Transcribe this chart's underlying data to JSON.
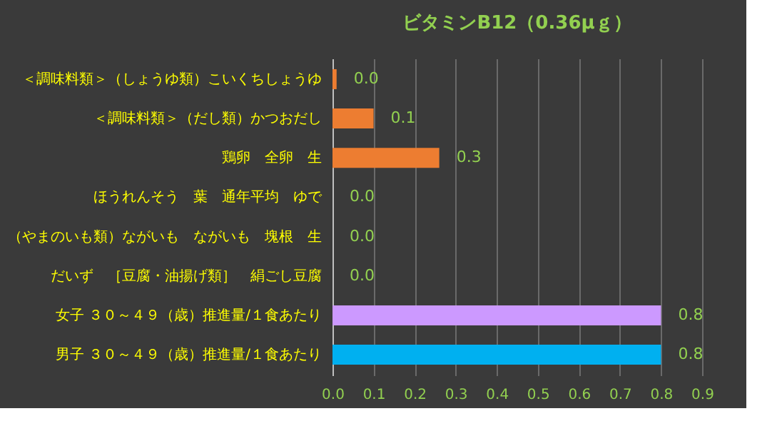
{
  "chart_data": {
    "type": "bar",
    "orientation": "horizontal",
    "title": "ビタミンB12（0.36μｇ）",
    "categories": [
      "＜調味料類＞（しょうゆ類）こいくちしょうゆ",
      "＜調味料類＞（だし類）かつおだし",
      "鶏卵　全卵　生",
      "ほうれんそう　葉　通年平均　ゆで",
      "（やまのいも類）ながいも　ながいも　塊根　生",
      "だいず　［豆腐・油揚げ類］　絹ごし豆腐",
      "女子 ３０～４９（歳）推進量/１食あたり",
      "男子 ３０～４９（歳）推進量/１食あたり"
    ],
    "values": [
      0.01,
      0.1,
      0.26,
      0,
      0,
      0,
      0.8,
      0.8
    ],
    "value_labels": [
      "0.0",
      "0.1",
      "0.3",
      "0.0",
      "0.0",
      "0.0",
      "0.8",
      "0.8"
    ],
    "colors": [
      "#ed7d31",
      "#ed7d31",
      "#ed7d31",
      "#ed7d31",
      "#ed7d31",
      "#ed7d31",
      "#cc99ff",
      "#00b0f0"
    ],
    "xlim": [
      0,
      0.9
    ],
    "xticks": [
      {
        "value": 0,
        "label": "0.0"
      },
      0.1,
      0.2,
      0.3,
      0.4,
      0.5,
      0.6,
      0.7,
      0.8,
      0.9
    ],
    "grid": "x"
  }
}
